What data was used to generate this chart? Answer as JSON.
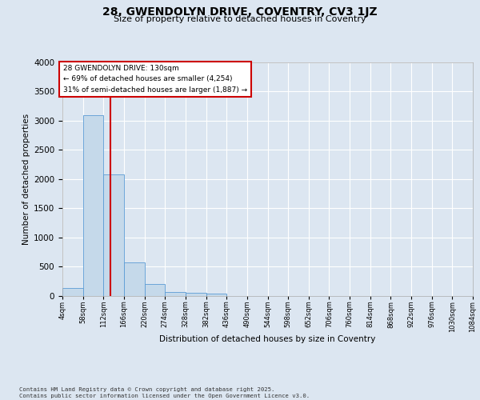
{
  "title": "28, GWENDOLYN DRIVE, COVENTRY, CV3 1JZ",
  "subtitle": "Size of property relative to detached houses in Coventry",
  "xlabel": "Distribution of detached houses by size in Coventry",
  "ylabel": "Number of detached properties",
  "footer_line1": "Contains HM Land Registry data © Crown copyright and database right 2025.",
  "footer_line2": "Contains public sector information licensed under the Open Government Licence v3.0.",
  "bar_color": "#c5d9ea",
  "bar_edge_color": "#5b9bd5",
  "bg_color": "#dce6f1",
  "grid_color": "#ffffff",
  "annotation_line1": "28 GWENDOLYN DRIVE: 130sqm",
  "annotation_line2": "← 69% of detached houses are smaller (4,254)",
  "annotation_line3": "31% of semi-detached houses are larger (1,887) →",
  "annotation_box_color": "#ffffff",
  "annotation_box_edge_color": "#cc0000",
  "vline_color": "#cc0000",
  "vline_x": 130,
  "bin_edges": [
    4,
    58,
    112,
    166,
    220,
    274,
    328,
    382,
    436,
    490,
    544,
    598,
    652,
    706,
    760,
    814,
    868,
    922,
    976,
    1030,
    1084
  ],
  "bin_labels": [
    "4sqm",
    "58sqm",
    "112sqm",
    "166sqm",
    "220sqm",
    "274sqm",
    "328sqm",
    "382sqm",
    "436sqm",
    "490sqm",
    "544sqm",
    "598sqm",
    "652sqm",
    "706sqm",
    "760sqm",
    "814sqm",
    "868sqm",
    "922sqm",
    "976sqm",
    "1030sqm",
    "1084sqm"
  ],
  "bar_heights": [
    140,
    3090,
    2085,
    575,
    200,
    75,
    55,
    45,
    0,
    0,
    0,
    0,
    0,
    0,
    0,
    0,
    0,
    0,
    0,
    0
  ],
  "ylim": [
    0,
    4000
  ],
  "yticks": [
    0,
    500,
    1000,
    1500,
    2000,
    2500,
    3000,
    3500,
    4000
  ]
}
